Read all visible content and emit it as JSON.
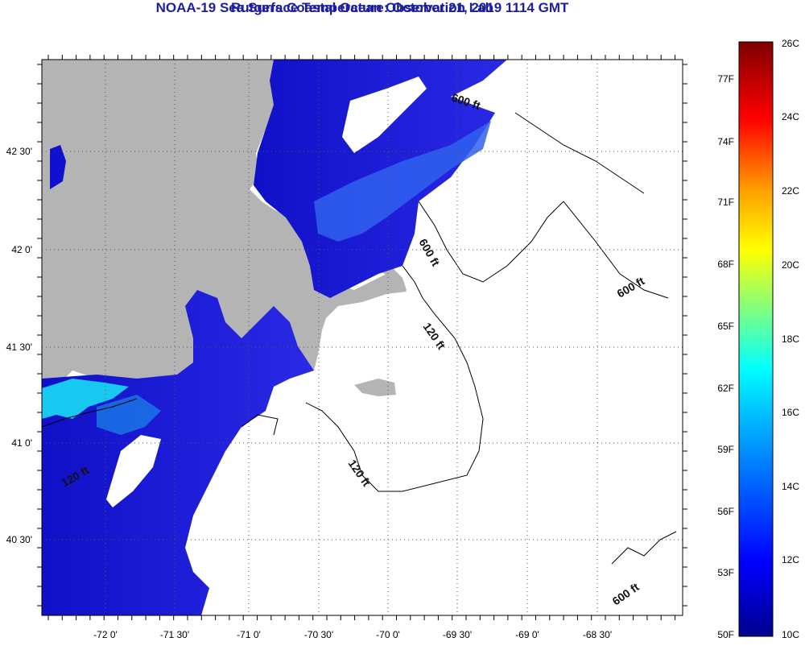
{
  "title": "NOAA-19 Sea Surface Temperature:  October 21, 2019 1114 GMT",
  "subtitle": "Rutgers Coastal Ocean Observation Lab",
  "lon_labels": [
    "-72 0'",
    "-71 30'",
    "-71 0'",
    "-70 30'",
    "-70 0'",
    "-69 30'",
    "-69 0'",
    "-68 30'"
  ],
  "lat_labels": [
    "42 30'",
    "42 0'",
    "41 30'",
    "41 0'",
    "40 30'"
  ],
  "contour_labels": [
    "600 ft",
    "600 ft",
    "600 ft",
    "600 ft",
    "120 ft",
    "120 ft",
    "120 ft"
  ],
  "colorbar": {
    "fahrenheit": [
      "77F",
      "74F",
      "71F",
      "68F",
      "65F",
      "62F",
      "59F",
      "56F",
      "53F",
      "50F"
    ],
    "celsius": [
      "26C",
      "24C",
      "22C",
      "20C",
      "18C",
      "16C",
      "14C",
      "12C",
      "10C"
    ],
    "colors": [
      "#00008f",
      "#0000ff",
      "#0080ff",
      "#00ffff",
      "#80ff80",
      "#ffff00",
      "#ff8000",
      "#ff0000",
      "#800000"
    ]
  },
  "land_color": "#b4b4b4",
  "no_data_color": "#ffffff"
}
